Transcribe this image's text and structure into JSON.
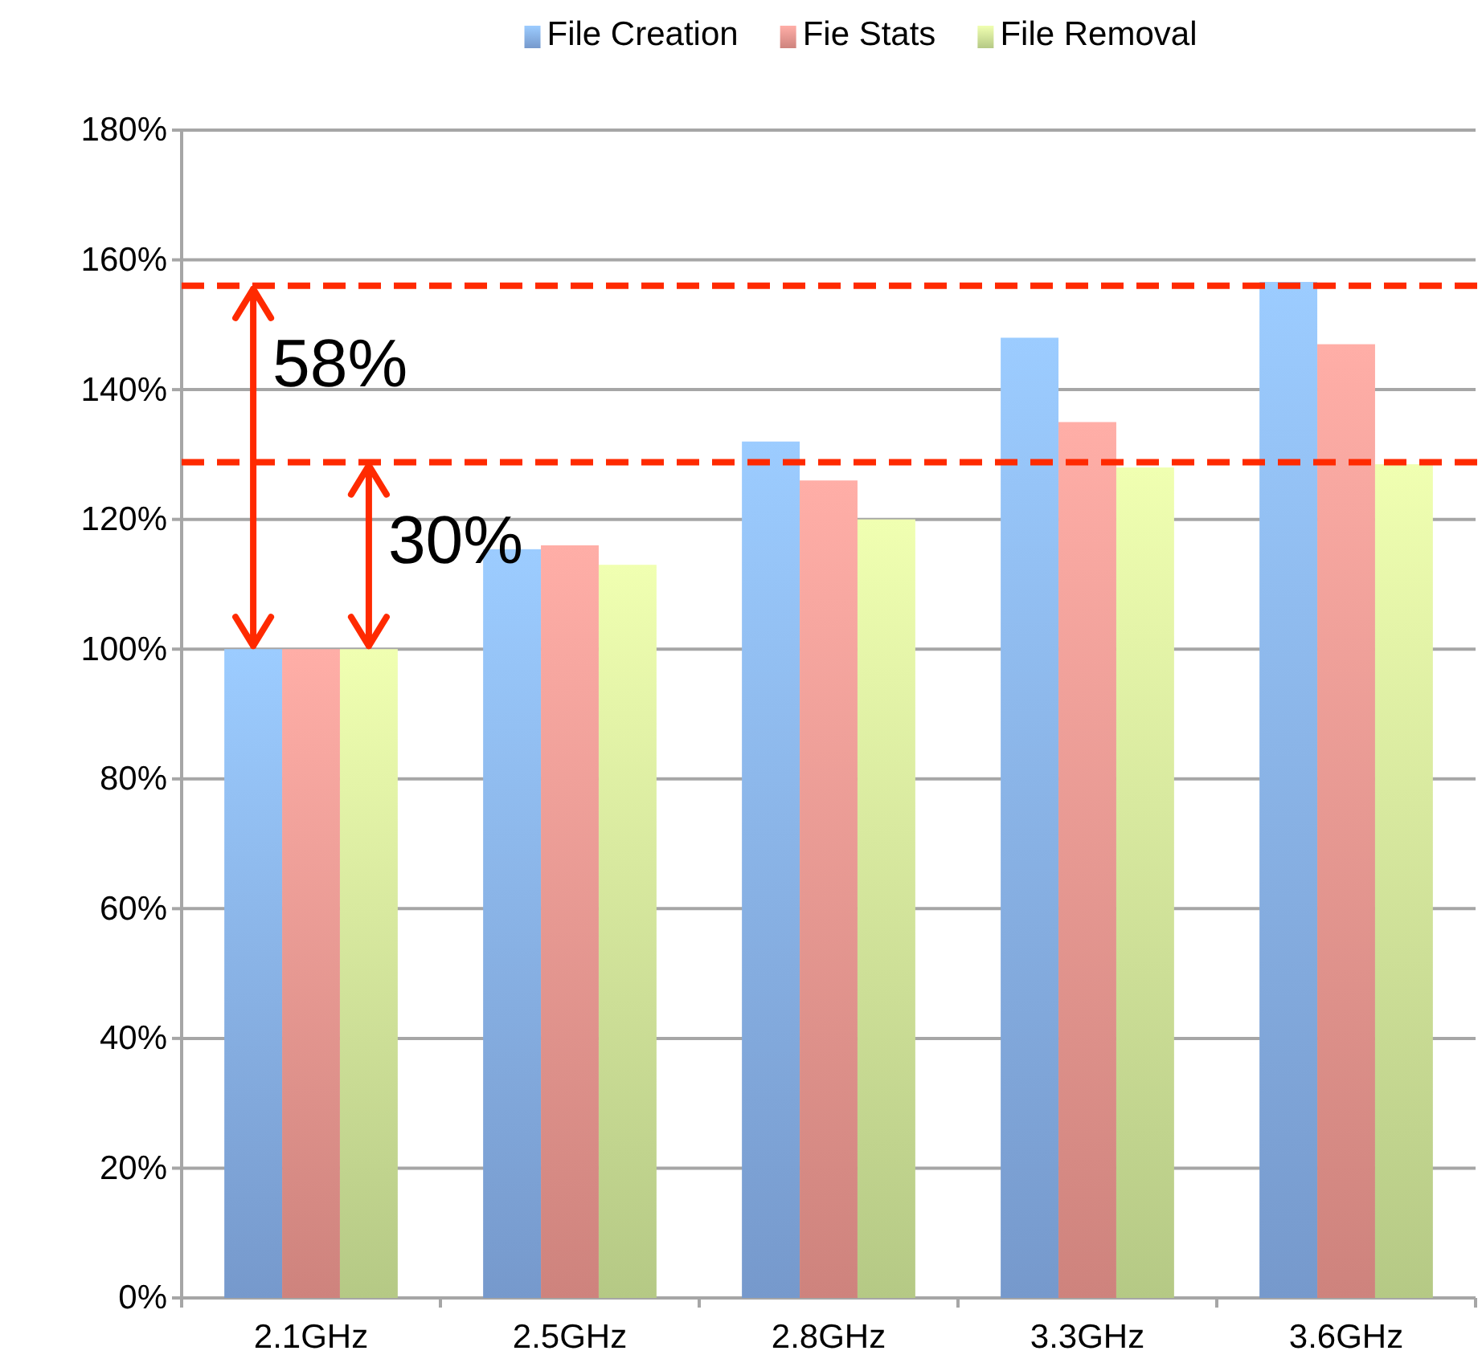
{
  "chart_data": {
    "type": "bar",
    "categories": [
      "2.1GHz",
      "2.5GHz",
      "2.8GHz",
      "3.3GHz",
      "3.6GHz"
    ],
    "series": [
      {
        "name": "File Creation",
        "color": "#8ab4ef",
        "values": [
          100,
          115.4,
          132,
          148,
          156.6
        ]
      },
      {
        "name": "Fie Stats",
        "color": "#f29a93",
        "values": [
          100,
          116,
          126,
          135,
          147
        ]
      },
      {
        "name": "File Removal",
        "color": "#d4ec9c",
        "values": [
          100,
          113,
          120,
          128,
          128.5
        ]
      }
    ],
    "ylim": [
      0,
      180
    ],
    "yticks": [
      {
        "value": 0,
        "label": "0%"
      },
      {
        "value": 20,
        "label": "20%"
      },
      {
        "value": 40,
        "label": "40%"
      },
      {
        "value": 60,
        "label": "60%"
      },
      {
        "value": 80,
        "label": "80%"
      },
      {
        "value": 100,
        "label": "100%"
      },
      {
        "value": 120,
        "label": "120%"
      },
      {
        "value": 140,
        "label": "140%"
      },
      {
        "value": 160,
        "label": "160%"
      },
      {
        "value": 180,
        "label": "180%"
      }
    ],
    "grid": "y",
    "legend": "top",
    "ref_lines": [
      {
        "axis": "y",
        "value": 156,
        "color": "#ff2a00",
        "line_style": "dashed"
      },
      {
        "axis": "y",
        "value": 128.8,
        "color": "#ff2a00",
        "line_style": "dashed"
      }
    ],
    "annotations": [
      {
        "text": "58%",
        "x": "2.1GHz",
        "y": 156
      },
      {
        "text": "30%",
        "x": "2.1GHz",
        "y": 128.8
      }
    ]
  }
}
